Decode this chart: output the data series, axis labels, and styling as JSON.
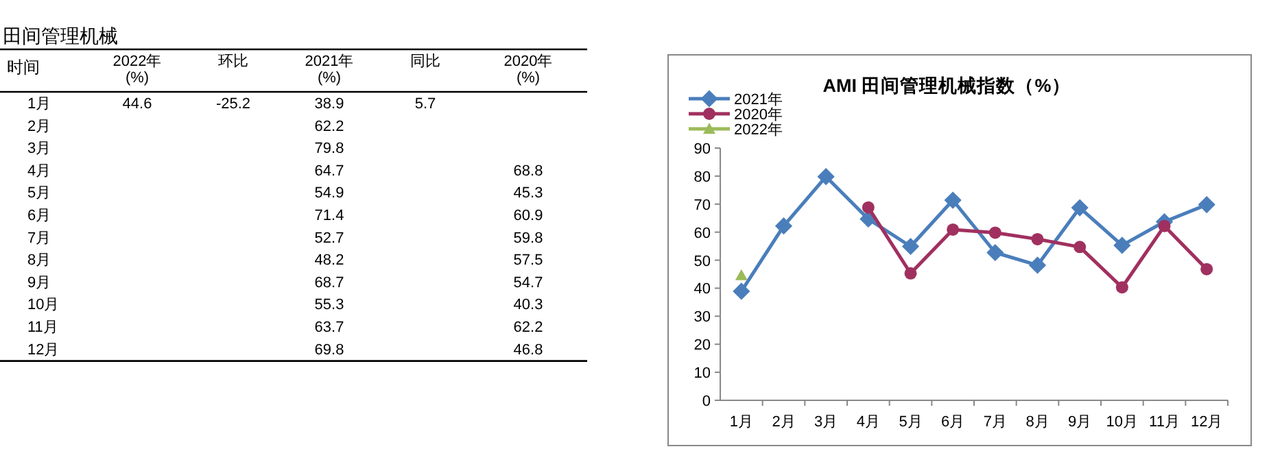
{
  "chart_data": [
    {
      "type": "heatmap",
      "title": "田间管理机械",
      "ylabel": "时间",
      "categories": [
        "2022年\n(%)",
        "环比",
        "2021年\n(%)",
        "同比",
        "2020年\n(%)"
      ],
      "y_categories": [
        "1月",
        "2月",
        "3月",
        "4月",
        "5月",
        "6月",
        "7月",
        "8月",
        "9月",
        "10月",
        "11月",
        "12月"
      ],
      "cells": [
        [
          44.6,
          -25.2,
          38.9,
          5.7,
          null
        ],
        [
          null,
          null,
          62.2,
          null,
          null
        ],
        [
          null,
          null,
          79.8,
          null,
          null
        ],
        [
          null,
          null,
          64.7,
          null,
          68.8
        ],
        [
          null,
          null,
          54.9,
          null,
          45.3
        ],
        [
          null,
          null,
          71.4,
          null,
          60.9
        ],
        [
          null,
          null,
          52.7,
          null,
          59.8
        ],
        [
          null,
          null,
          48.2,
          null,
          57.5
        ],
        [
          null,
          null,
          68.7,
          null,
          54.7
        ],
        [
          null,
          null,
          55.3,
          null,
          40.3
        ],
        [
          null,
          null,
          63.7,
          null,
          62.2
        ],
        [
          null,
          null,
          69.8,
          null,
          46.8
        ]
      ],
      "cell_labels": [
        [
          "44.6",
          "-25.2",
          "38.9",
          "5.7",
          null
        ],
        [
          null,
          null,
          "62.2",
          null,
          null
        ],
        [
          null,
          null,
          "79.8",
          null,
          null
        ],
        [
          null,
          null,
          "64.7",
          null,
          "68.8"
        ],
        [
          null,
          null,
          "54.9",
          null,
          "45.3"
        ],
        [
          null,
          null,
          "71.4",
          null,
          "60.9"
        ],
        [
          null,
          null,
          "52.7",
          null,
          "59.8"
        ],
        [
          null,
          null,
          "48.2",
          null,
          "57.5"
        ],
        [
          null,
          null,
          "68.7",
          null,
          "54.7"
        ],
        [
          null,
          null,
          "55.3",
          null,
          "40.3"
        ],
        [
          null,
          null,
          "63.7",
          null,
          "62.2"
        ],
        [
          null,
          null,
          "69.8",
          null,
          "46.8"
        ]
      ]
    },
    {
      "type": "line",
      "title": "AMI 田间管理机械指数（%）",
      "categories": [
        "1月",
        "2月",
        "3月",
        "4月",
        "5月",
        "6月",
        "7月",
        "8月",
        "9月",
        "10月",
        "11月",
        "12月"
      ],
      "series": [
        {
          "name": "2021年",
          "color": "#4a7ebb",
          "marker": "diamond",
          "values": [
            38.9,
            62.2,
            79.8,
            64.7,
            54.9,
            71.4,
            52.7,
            48.2,
            68.7,
            55.3,
            63.7,
            69.8
          ]
        },
        {
          "name": "2020年",
          "color": "#a0305f",
          "marker": "circle",
          "values": [
            null,
            null,
            null,
            68.8,
            45.3,
            60.9,
            59.8,
            57.5,
            54.7,
            40.3,
            62.2,
            46.8
          ]
        },
        {
          "name": "2022年",
          "color": "#9bbb59",
          "marker": "triangle",
          "values": [
            44.6,
            null,
            null,
            null,
            null,
            null,
            null,
            null,
            null,
            null,
            null,
            null
          ]
        }
      ],
      "ylim": [
        0,
        90
      ],
      "yticks": [
        0,
        10,
        20,
        30,
        40,
        50,
        60,
        70,
        80,
        90
      ],
      "legend": "top left"
    }
  ]
}
